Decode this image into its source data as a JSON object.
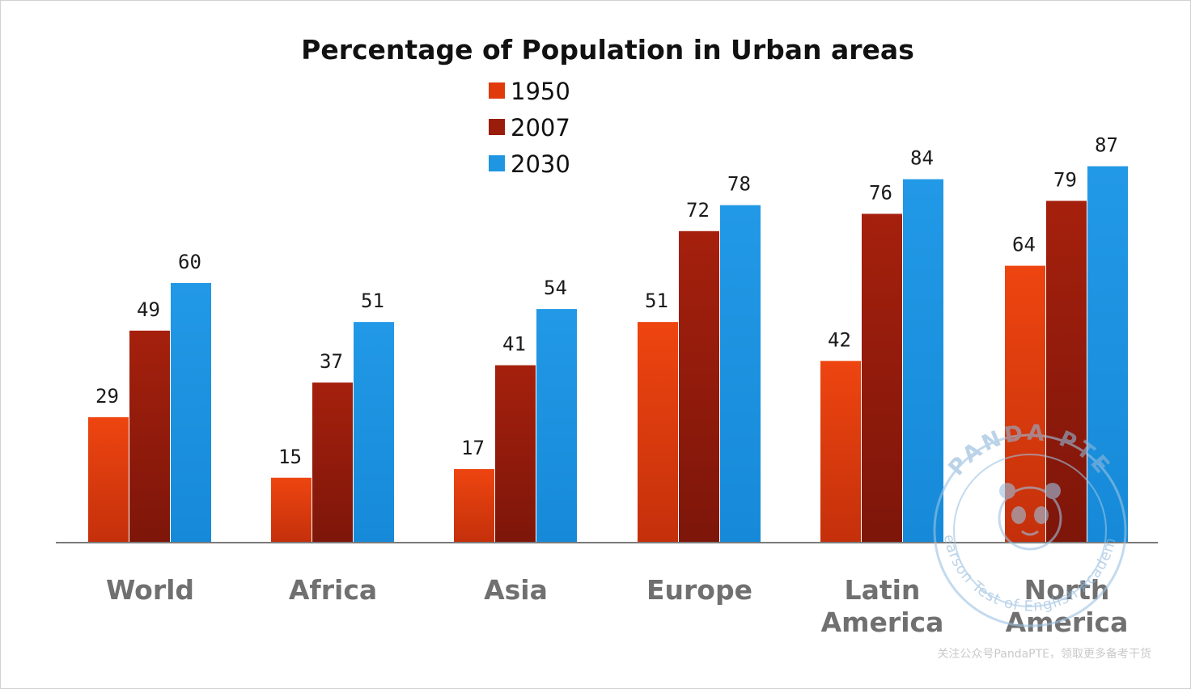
{
  "chart_data": {
    "type": "bar",
    "title": "Percentage of Population in Urban areas",
    "categories": [
      "World",
      "Africa",
      "Asia",
      "Europe",
      "Latin America",
      "North America"
    ],
    "series": [
      {
        "name": "1950",
        "color": "#e03a0a",
        "values": [
          29,
          15,
          17,
          51,
          42,
          64
        ]
      },
      {
        "name": "2007",
        "color": "#9a1d0c",
        "values": [
          49,
          37,
          41,
          72,
          76,
          79
        ]
      },
      {
        "name": "2030",
        "color": "#1e96e2",
        "values": [
          60,
          51,
          54,
          78,
          84,
          87
        ]
      }
    ],
    "ylim": [
      0,
      100
    ],
    "grid": false,
    "legend": "top-center",
    "data_labels": true
  },
  "watermark": {
    "ring_top_text": "PANDA PTE",
    "ring_bottom_text": "Bearson Test of English Academic",
    "footer_note": "关注公众号PandaPTE，领取更多备考干货"
  }
}
